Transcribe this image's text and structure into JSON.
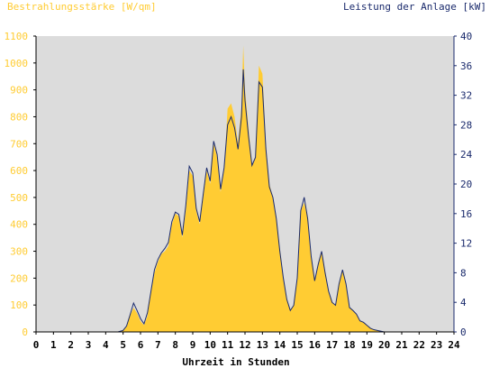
{
  "chart_data": {
    "type": "area",
    "title_left": "Bestrahlungsstärke [W/qm]",
    "title_right": "Leistung der Anlage [kW]",
    "xlabel": "Uhrzeit in Stunden",
    "xlim": [
      0,
      24
    ],
    "x_ticks": [
      "0",
      "1",
      "2",
      "3",
      "4",
      "5",
      "6",
      "7",
      "8",
      "9",
      "10",
      "11",
      "12",
      "13",
      "14",
      "15",
      "16",
      "17",
      "18",
      "19",
      "20",
      "21",
      "22",
      "23",
      "24"
    ],
    "y_left_lim": [
      0,
      1100
    ],
    "y_left_ticks": [
      "0",
      "100",
      "200",
      "300",
      "400",
      "500",
      "600",
      "700",
      "800",
      "900",
      "1000",
      "1100"
    ],
    "y_right_lim": [
      0,
      40
    ],
    "y_right_ticks": [
      "0",
      "4",
      "8",
      "12",
      "16",
      "20",
      "24",
      "28",
      "32",
      "36",
      "40"
    ],
    "grid": false,
    "colors": {
      "irradiance": "#ffcc33",
      "power": "#1a2a6c",
      "plot_bg": "#dcdcdc"
    },
    "series": [
      {
        "axis": "left",
        "style": "area",
        "points": [
          [
            0,
            0
          ],
          [
            4.6,
            0
          ],
          [
            4.9,
            3
          ],
          [
            5.2,
            20
          ],
          [
            5.4,
            60
          ],
          [
            5.6,
            90
          ],
          [
            5.8,
            70
          ],
          [
            6.0,
            40
          ],
          [
            6.2,
            25
          ],
          [
            6.4,
            60
          ],
          [
            6.6,
            150
          ],
          [
            6.8,
            220
          ],
          [
            7.0,
            260
          ],
          [
            7.2,
            290
          ],
          [
            7.4,
            300
          ],
          [
            7.6,
            320
          ],
          [
            7.8,
            400
          ],
          [
            8.0,
            440
          ],
          [
            8.2,
            430
          ],
          [
            8.4,
            350
          ],
          [
            8.6,
            450
          ],
          [
            8.8,
            600
          ],
          [
            9.0,
            580
          ],
          [
            9.2,
            450
          ],
          [
            9.4,
            400
          ],
          [
            9.6,
            500
          ],
          [
            9.8,
            600
          ],
          [
            10.0,
            550
          ],
          [
            10.2,
            700
          ],
          [
            10.4,
            650
          ],
          [
            10.6,
            520
          ],
          [
            10.8,
            600
          ],
          [
            11.0,
            830
          ],
          [
            11.2,
            850
          ],
          [
            11.4,
            800
          ],
          [
            11.6,
            700
          ],
          [
            11.8,
            840
          ],
          [
            11.9,
            1065
          ],
          [
            12.0,
            900
          ],
          [
            12.2,
            760
          ],
          [
            12.4,
            620
          ],
          [
            12.6,
            650
          ],
          [
            12.8,
            990
          ],
          [
            13.0,
            960
          ],
          [
            13.2,
            700
          ],
          [
            13.4,
            550
          ],
          [
            13.6,
            500
          ],
          [
            13.8,
            430
          ],
          [
            14.0,
            300
          ],
          [
            14.2,
            200
          ],
          [
            14.4,
            120
          ],
          [
            14.6,
            80
          ],
          [
            14.8,
            100
          ],
          [
            15.0,
            200
          ],
          [
            15.2,
            450
          ],
          [
            15.4,
            480
          ],
          [
            15.6,
            420
          ],
          [
            15.8,
            280
          ],
          [
            16.0,
            190
          ],
          [
            16.2,
            250
          ],
          [
            16.4,
            300
          ],
          [
            16.6,
            220
          ],
          [
            16.8,
            150
          ],
          [
            17.0,
            110
          ],
          [
            17.2,
            100
          ],
          [
            17.4,
            180
          ],
          [
            17.6,
            230
          ],
          [
            17.8,
            180
          ],
          [
            18.0,
            90
          ],
          [
            18.2,
            80
          ],
          [
            18.4,
            65
          ],
          [
            18.6,
            40
          ],
          [
            18.8,
            35
          ],
          [
            19.0,
            25
          ],
          [
            19.2,
            15
          ],
          [
            19.4,
            8
          ],
          [
            19.6,
            5
          ],
          [
            20.0,
            0
          ],
          [
            24,
            0
          ]
        ]
      },
      {
        "axis": "right",
        "style": "line",
        "points": [
          [
            0,
            0
          ],
          [
            4.7,
            0
          ],
          [
            5.0,
            0.2
          ],
          [
            5.2,
            0.8
          ],
          [
            5.4,
            2.3
          ],
          [
            5.6,
            3.9
          ],
          [
            5.8,
            2.9
          ],
          [
            6.0,
            1.8
          ],
          [
            6.2,
            1.1
          ],
          [
            6.4,
            2.6
          ],
          [
            6.6,
            5.5
          ],
          [
            6.8,
            8.4
          ],
          [
            7.0,
            9.8
          ],
          [
            7.2,
            10.7
          ],
          [
            7.4,
            11.3
          ],
          [
            7.6,
            12.1
          ],
          [
            7.8,
            14.9
          ],
          [
            8.0,
            16.2
          ],
          [
            8.2,
            15.9
          ],
          [
            8.4,
            13.1
          ],
          [
            8.6,
            17.1
          ],
          [
            8.8,
            22.4
          ],
          [
            9.0,
            21.5
          ],
          [
            9.2,
            16.7
          ],
          [
            9.4,
            14.9
          ],
          [
            9.6,
            18.6
          ],
          [
            9.8,
            22.2
          ],
          [
            10.0,
            20.4
          ],
          [
            10.2,
            25.8
          ],
          [
            10.4,
            24.0
          ],
          [
            10.6,
            19.3
          ],
          [
            10.8,
            22.2
          ],
          [
            11.0,
            28.0
          ],
          [
            11.2,
            29.1
          ],
          [
            11.4,
            27.6
          ],
          [
            11.6,
            24.7
          ],
          [
            11.8,
            29.1
          ],
          [
            11.9,
            35.5
          ],
          [
            12.0,
            31.3
          ],
          [
            12.2,
            26.5
          ],
          [
            12.4,
            22.5
          ],
          [
            12.6,
            23.6
          ],
          [
            12.8,
            33.8
          ],
          [
            13.0,
            33.1
          ],
          [
            13.2,
            24.7
          ],
          [
            13.4,
            19.6
          ],
          [
            13.6,
            18.2
          ],
          [
            13.8,
            15.3
          ],
          [
            14.0,
            10.9
          ],
          [
            14.2,
            7.3
          ],
          [
            14.4,
            4.4
          ],
          [
            14.6,
            2.9
          ],
          [
            14.8,
            3.6
          ],
          [
            15.0,
            7.3
          ],
          [
            15.2,
            16.4
          ],
          [
            15.4,
            18.2
          ],
          [
            15.6,
            15.3
          ],
          [
            15.8,
            10.2
          ],
          [
            16.0,
            6.9
          ],
          [
            16.2,
            9.1
          ],
          [
            16.4,
            10.9
          ],
          [
            16.6,
            8.0
          ],
          [
            16.8,
            5.5
          ],
          [
            17.0,
            4.0
          ],
          [
            17.2,
            3.6
          ],
          [
            17.4,
            6.5
          ],
          [
            17.6,
            8.4
          ],
          [
            17.8,
            6.5
          ],
          [
            18.0,
            3.3
          ],
          [
            18.2,
            2.9
          ],
          [
            18.4,
            2.4
          ],
          [
            18.6,
            1.5
          ],
          [
            18.8,
            1.3
          ],
          [
            19.0,
            0.9
          ],
          [
            19.2,
            0.5
          ],
          [
            19.4,
            0.3
          ],
          [
            19.6,
            0.2
          ],
          [
            20.0,
            0
          ],
          [
            24,
            0
          ]
        ]
      }
    ]
  }
}
